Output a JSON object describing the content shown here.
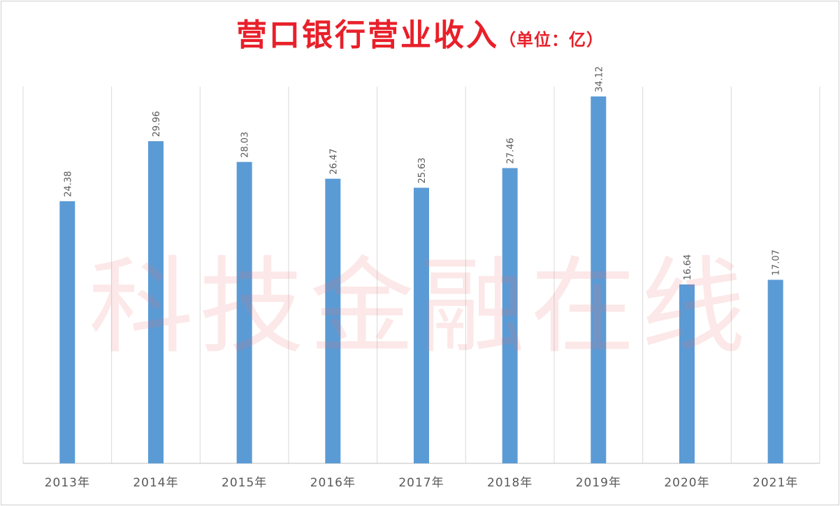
{
  "title": "营口银行营业收入",
  "title_unit": "（单位：亿）",
  "watermark": "科技金融在线",
  "colors": {
    "bar": "#5b9bd5",
    "title": "#e8202a",
    "grid": "#d9d9d9",
    "axis": "#bfbfbf",
    "label": "#595959"
  },
  "chart_data": {
    "type": "bar",
    "title": "营口银行营业收入（单位：亿）",
    "categories": [
      "2013年",
      "2014年",
      "2015年",
      "2016年",
      "2017年",
      "2018年",
      "2019年",
      "2020年",
      "2021年"
    ],
    "series": [
      {
        "values": [
          24.38,
          29.96,
          28.03,
          26.47,
          25.63,
          27.46,
          34.12,
          16.64,
          17.07
        ],
        "labels": [
          "24.38",
          "29.96",
          "28.03",
          "26.47",
          "25.63",
          "27.46",
          "34.12",
          "16.64",
          "17.07"
        ]
      }
    ],
    "xlabel": "",
    "ylabel": "",
    "ylim": [
      0,
      35
    ],
    "y_axis_visible": false,
    "grid": "vertical category separators",
    "legend": "none",
    "data_labels": "above bars, rotated vertical"
  }
}
